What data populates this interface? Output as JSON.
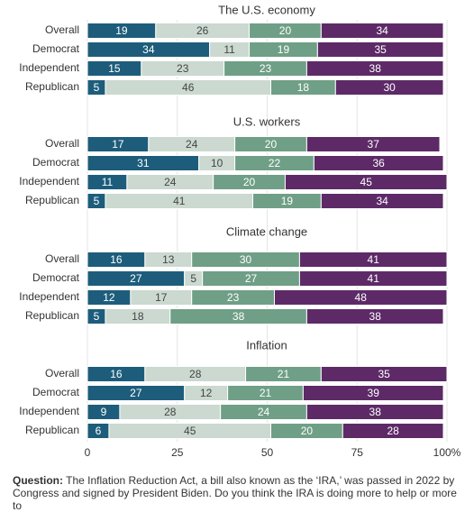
{
  "chart_data": [
    {
      "type": "stacked-bar",
      "title": "The U.S. economy",
      "categories": [
        "Overall",
        "Democrat",
        "Independent",
        "Republican"
      ],
      "series": [
        {
          "color": "#1d5d7b",
          "values": [
            19,
            34,
            15,
            5
          ]
        },
        {
          "color": "#cbd9d0",
          "values": [
            26,
            11,
            23,
            46
          ]
        },
        {
          "color": "#6f9f86",
          "values": [
            20,
            19,
            23,
            18
          ]
        },
        {
          "color": "#5d2a67",
          "values": [
            34,
            35,
            38,
            30
          ]
        }
      ],
      "xlim": [
        0,
        100
      ]
    },
    {
      "type": "stacked-bar",
      "title": "U.S. workers",
      "categories": [
        "Overall",
        "Democrat",
        "Independent",
        "Republican"
      ],
      "series": [
        {
          "color": "#1d5d7b",
          "values": [
            17,
            31,
            11,
            5
          ]
        },
        {
          "color": "#cbd9d0",
          "values": [
            24,
            10,
            24,
            41
          ]
        },
        {
          "color": "#6f9f86",
          "values": [
            20,
            22,
            20,
            19
          ]
        },
        {
          "color": "#5d2a67",
          "values": [
            37,
            36,
            45,
            34
          ]
        }
      ],
      "xlim": [
        0,
        100
      ]
    },
    {
      "type": "stacked-bar",
      "title": "Climate change",
      "categories": [
        "Overall",
        "Democrat",
        "Independent",
        "Republican"
      ],
      "series": [
        {
          "color": "#1d5d7b",
          "values": [
            16,
            27,
            12,
            5
          ]
        },
        {
          "color": "#cbd9d0",
          "values": [
            13,
            5,
            17,
            18
          ]
        },
        {
          "color": "#6f9f86",
          "values": [
            30,
            27,
            23,
            38
          ]
        },
        {
          "color": "#5d2a67",
          "values": [
            41,
            41,
            48,
            38
          ]
        }
      ],
      "xlim": [
        0,
        100
      ]
    },
    {
      "type": "stacked-bar",
      "title": "Inflation",
      "categories": [
        "Overall",
        "Democrat",
        "Independent",
        "Republican"
      ],
      "series": [
        {
          "color": "#1d5d7b",
          "values": [
            16,
            27,
            9,
            6
          ]
        },
        {
          "color": "#cbd9d0",
          "values": [
            28,
            12,
            28,
            45
          ]
        },
        {
          "color": "#6f9f86",
          "values": [
            21,
            21,
            24,
            20
          ]
        },
        {
          "color": "#5d2a67",
          "values": [
            35,
            39,
            38,
            28
          ]
        }
      ],
      "xlim": [
        0,
        100
      ],
      "xticks": [
        0,
        25,
        50,
        75,
        {
          "value": 100,
          "label": "100%"
        }
      ],
      "grid": true
    }
  ],
  "question": {
    "label": "Question:",
    "text": "The Inflation Reduction Act, a bill also known as the ‘IRA,’ was passed in 2022 by Congress and signed by President Biden. Do you think the IRA is doing more to help or more to"
  }
}
